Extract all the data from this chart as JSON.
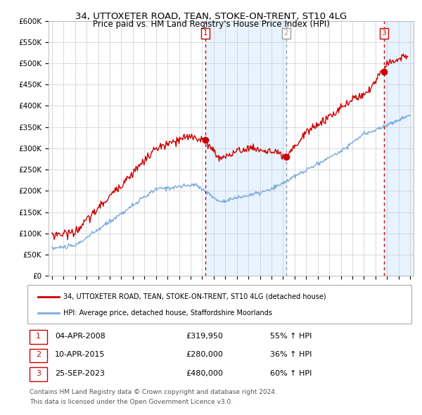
{
  "title": "34, UTTOXETER ROAD, TEAN, STOKE-ON-TRENT, ST10 4LG",
  "subtitle": "Price paid vs. HM Land Registry's House Price Index (HPI)",
  "ylim": [
    0,
    600000
  ],
  "yticks": [
    0,
    50000,
    100000,
    150000,
    200000,
    250000,
    300000,
    350000,
    400000,
    450000,
    500000,
    550000,
    600000
  ],
  "legend_line1": "34, UTTOXETER ROAD, TEAN, STOKE-ON-TRENT, ST10 4LG (detached house)",
  "legend_line2": "HPI: Average price, detached house, Staffordshire Moorlands",
  "price_paid_color": "#cc0000",
  "hpi_color": "#7aaadd",
  "vline_color_red": "#cc0000",
  "vline_color_gray": "#999999",
  "transactions": [
    {
      "num": 1,
      "date_label": "04-APR-2008",
      "date_x": 2008.27,
      "price": 319950,
      "price_str": "£319,950",
      "pct": "55%",
      "dir": "↑",
      "vline_color": "#cc0000",
      "vline_style": ":"
    },
    {
      "num": 2,
      "date_label": "10-APR-2015",
      "date_x": 2015.28,
      "price": 280000,
      "price_str": "£280,000",
      "pct": "36%",
      "dir": "↑",
      "vline_color": "#999999",
      "vline_style": "--"
    },
    {
      "num": 3,
      "date_label": "25-SEP-2023",
      "date_x": 2023.73,
      "price": 480000,
      "price_str": "£480,000",
      "pct": "60%",
      "dir": "↑",
      "vline_color": "#cc0000",
      "vline_style": ":"
    }
  ],
  "sale_marker_values": [
    319950,
    280000,
    480000
  ],
  "footer_line1": "Contains HM Land Registry data © Crown copyright and database right 2024.",
  "footer_line2": "This data is licensed under the Open Government Licence v3.0.",
  "background_color": "#ffffff",
  "plot_bg_color": "#ffffff",
  "grid_color": "#cccccc",
  "shaded_region_color": "#ddeeff",
  "xmin": 1994.7,
  "xmax": 2026.3
}
